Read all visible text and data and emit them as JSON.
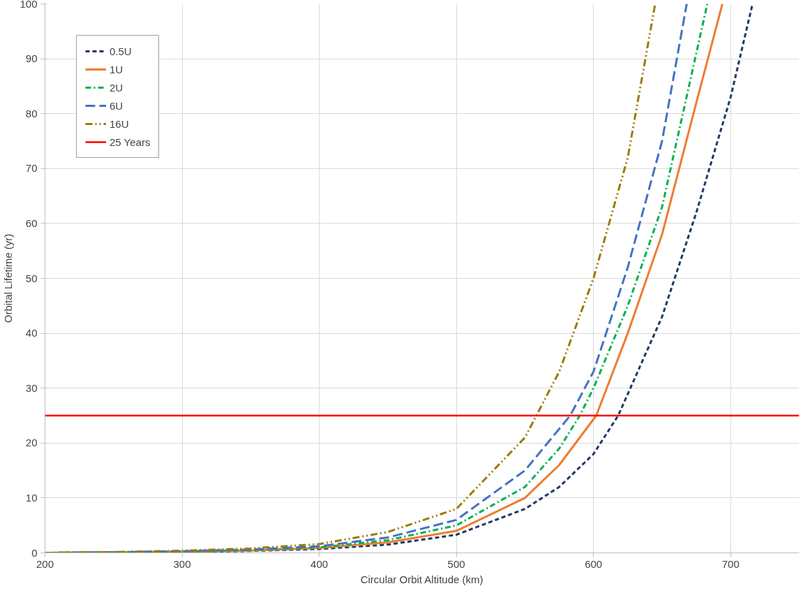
{
  "chart_data": {
    "type": "line",
    "xlabel": "Circular Orbit Altitude (km)",
    "ylabel": "Orbital Lifetime (yr)",
    "xlim": [
      200,
      750
    ],
    "xticks": [
      200,
      300,
      400,
      500,
      600,
      700
    ],
    "ylim": [
      0,
      100
    ],
    "yticks": [
      0,
      10,
      20,
      30,
      40,
      50,
      60,
      70,
      80,
      90,
      100
    ],
    "grid": true,
    "legend": "top left",
    "marker": "none",
    "series": [
      {
        "name": "0.5U",
        "color": "#203864",
        "line_style": "dashed",
        "x": [
          200,
          250,
          300,
          350,
          400,
          450,
          500,
          550,
          575,
          600,
          618,
          650,
          675,
          700,
          716
        ],
        "values": [
          0,
          0.05,
          0.15,
          0.35,
          0.7,
          1.5,
          3.3,
          8,
          12,
          18,
          25,
          43,
          62,
          83,
          100
        ]
      },
      {
        "name": "1U",
        "color": "#ed7d31",
        "line_style": "solid",
        "x": [
          200,
          250,
          300,
          350,
          400,
          450,
          500,
          550,
          575,
          602,
          625,
          650,
          675,
          694
        ],
        "values": [
          0,
          0.1,
          0.2,
          0.4,
          0.9,
          1.9,
          4,
          10,
          16,
          25,
          40,
          58,
          82,
          100
        ]
      },
      {
        "name": "2U",
        "color": "#00b050",
        "line_style": "dashdot",
        "x": [
          200,
          250,
          300,
          350,
          400,
          450,
          500,
          550,
          575,
          590,
          600,
          625,
          650,
          683
        ],
        "values": [
          0,
          0.1,
          0.25,
          0.5,
          1,
          2.3,
          5,
          12,
          19,
          25,
          30,
          45,
          63,
          100
        ]
      },
      {
        "name": "6U",
        "color": "#4472c4",
        "line_style": "longdash",
        "x": [
          200,
          250,
          300,
          350,
          400,
          450,
          500,
          550,
          583,
          600,
          625,
          650,
          668
        ],
        "values": [
          0,
          0.1,
          0.3,
          0.6,
          1.2,
          2.8,
          6,
          15,
          25,
          33,
          52,
          75,
          100
        ]
      },
      {
        "name": "16U",
        "color": "#9c7a00",
        "line_style": "dashdotdot",
        "x": [
          200,
          250,
          300,
          350,
          400,
          450,
          500,
          550,
          575,
          600,
          625,
          645
        ],
        "values": [
          0,
          0.15,
          0.4,
          0.8,
          1.6,
          3.8,
          8,
          21,
          33,
          50,
          72,
          100
        ]
      }
    ],
    "ref_lines": [
      {
        "axis": "y",
        "value": 25,
        "label": "25 Years",
        "color": "#ff0000",
        "line_style": "solid"
      }
    ]
  }
}
